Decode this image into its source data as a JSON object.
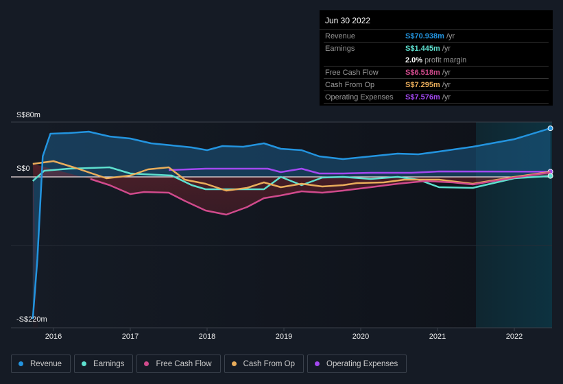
{
  "tooltip": {
    "date": "Jun 30 2022",
    "rows": [
      {
        "label": "Revenue",
        "value": "S$70.938m",
        "unit": " /yr",
        "color": "#2394df"
      },
      {
        "label": "Earnings",
        "value": "S$1.445m",
        "unit": " /yr",
        "color": "#5ee0cf"
      },
      {
        "label": "",
        "value": "2.0%",
        "unit": " profit margin",
        "color": "#ffffff"
      },
      {
        "label": "Free Cash Flow",
        "value": "S$6.518m",
        "unit": " /yr",
        "color": "#d04a8c"
      },
      {
        "label": "Cash From Op",
        "value": "S$7.295m",
        "unit": " /yr",
        "color": "#e9ad5b"
      },
      {
        "label": "Operating Expenses",
        "value": "S$7.576m",
        "unit": " /yr",
        "color": "#a348f0"
      }
    ]
  },
  "legend": [
    {
      "label": "Revenue",
      "color": "#2394df"
    },
    {
      "label": "Earnings",
      "color": "#5ee0cf"
    },
    {
      "label": "Free Cash Flow",
      "color": "#d04a8c"
    },
    {
      "label": "Cash From Op",
      "color": "#e9ad5b"
    },
    {
      "label": "Operating Expenses",
      "color": "#a348f0"
    }
  ],
  "chart_data": {
    "type": "line",
    "ylabel_ticks": [
      "S$80m",
      "S$0",
      "-S$220m"
    ],
    "ylim": [
      -220,
      80
    ],
    "xlim": [
      2015.73,
      2022.5
    ],
    "xticks": [
      "2016",
      "2017",
      "2018",
      "2019",
      "2020",
      "2021",
      "2022"
    ],
    "forecast_start": 2021.5,
    "series": [
      {
        "name": "Revenue",
        "color": "#2394df",
        "points": [
          [
            2015.73,
            -207
          ],
          [
            2015.79,
            -120
          ],
          [
            2015.86,
            30
          ],
          [
            2015.96,
            63
          ],
          [
            2016.2,
            64
          ],
          [
            2016.46,
            66
          ],
          [
            2016.73,
            59
          ],
          [
            2017.0,
            56
          ],
          [
            2017.27,
            49
          ],
          [
            2017.54,
            46
          ],
          [
            2017.8,
            43
          ],
          [
            2018.0,
            39
          ],
          [
            2018.2,
            45
          ],
          [
            2018.47,
            44
          ],
          [
            2018.74,
            49
          ],
          [
            2018.96,
            41
          ],
          [
            2019.23,
            39
          ],
          [
            2019.46,
            30
          ],
          [
            2019.77,
            26
          ],
          [
            2020.13,
            30
          ],
          [
            2020.48,
            34
          ],
          [
            2020.75,
            33
          ],
          [
            2021.02,
            37
          ],
          [
            2021.46,
            44
          ],
          [
            2022.0,
            55
          ],
          [
            2022.47,
            70.9
          ]
        ]
      },
      {
        "name": "Earnings",
        "color": "#5ee0cf",
        "points": [
          [
            2015.73,
            -6
          ],
          [
            2015.88,
            9
          ],
          [
            2016.2,
            12
          ],
          [
            2016.73,
            14
          ],
          [
            2017.0,
            5
          ],
          [
            2017.54,
            2
          ],
          [
            2017.8,
            -12
          ],
          [
            2017.98,
            -18
          ],
          [
            2018.34,
            -18
          ],
          [
            2018.74,
            -18
          ],
          [
            2018.96,
            0
          ],
          [
            2019.23,
            -12
          ],
          [
            2019.5,
            -1
          ],
          [
            2019.77,
            0
          ],
          [
            2020.13,
            -3
          ],
          [
            2020.48,
            0
          ],
          [
            2020.75,
            -4
          ],
          [
            2021.02,
            -15
          ],
          [
            2021.46,
            -16
          ],
          [
            2022.0,
            -2
          ],
          [
            2022.47,
            1.4
          ]
        ]
      },
      {
        "name": "Free Cash Flow",
        "color": "#d04a8c",
        "points": [
          [
            2016.48,
            -3
          ],
          [
            2016.73,
            -12
          ],
          [
            2017.0,
            -25
          ],
          [
            2017.18,
            -22
          ],
          [
            2017.5,
            -23
          ],
          [
            2017.71,
            -35
          ],
          [
            2017.98,
            -49
          ],
          [
            2018.25,
            -55
          ],
          [
            2018.52,
            -44
          ],
          [
            2018.74,
            -31
          ],
          [
            2018.96,
            -27
          ],
          [
            2019.23,
            -21
          ],
          [
            2019.5,
            -23
          ],
          [
            2019.77,
            -20
          ],
          [
            2020.13,
            -15
          ],
          [
            2020.48,
            -10
          ],
          [
            2020.84,
            -6
          ],
          [
            2021.2,
            -8
          ],
          [
            2021.46,
            -11
          ],
          [
            2022.0,
            -1
          ],
          [
            2022.47,
            6.5
          ]
        ]
      },
      {
        "name": "Cash From Op",
        "color": "#e9ad5b",
        "points": [
          [
            2015.73,
            19
          ],
          [
            2016.0,
            23
          ],
          [
            2016.29,
            13
          ],
          [
            2016.69,
            -2
          ],
          [
            2017.0,
            2
          ],
          [
            2017.23,
            11
          ],
          [
            2017.5,
            14
          ],
          [
            2017.71,
            -4
          ],
          [
            2017.98,
            -10
          ],
          [
            2018.25,
            -20
          ],
          [
            2018.52,
            -16
          ],
          [
            2018.74,
            -8
          ],
          [
            2018.96,
            -15
          ],
          [
            2019.23,
            -10
          ],
          [
            2019.5,
            -14
          ],
          [
            2019.77,
            -12
          ],
          [
            2019.95,
            -9
          ],
          [
            2020.3,
            -8
          ],
          [
            2020.57,
            -4
          ],
          [
            2021.02,
            -4
          ],
          [
            2021.46,
            -10
          ],
          [
            2022.0,
            0
          ],
          [
            2022.47,
            7.3
          ]
        ]
      },
      {
        "name": "Operating Expenses",
        "color": "#a348f0",
        "points": [
          [
            2017.5,
            10
          ],
          [
            2017.98,
            12
          ],
          [
            2018.52,
            12
          ],
          [
            2018.79,
            12
          ],
          [
            2018.96,
            7
          ],
          [
            2019.23,
            12
          ],
          [
            2019.46,
            5
          ],
          [
            2019.77,
            5
          ],
          [
            2020.13,
            6
          ],
          [
            2020.66,
            6
          ],
          [
            2021.02,
            8
          ],
          [
            2022.47,
            7.6
          ]
        ]
      }
    ]
  }
}
